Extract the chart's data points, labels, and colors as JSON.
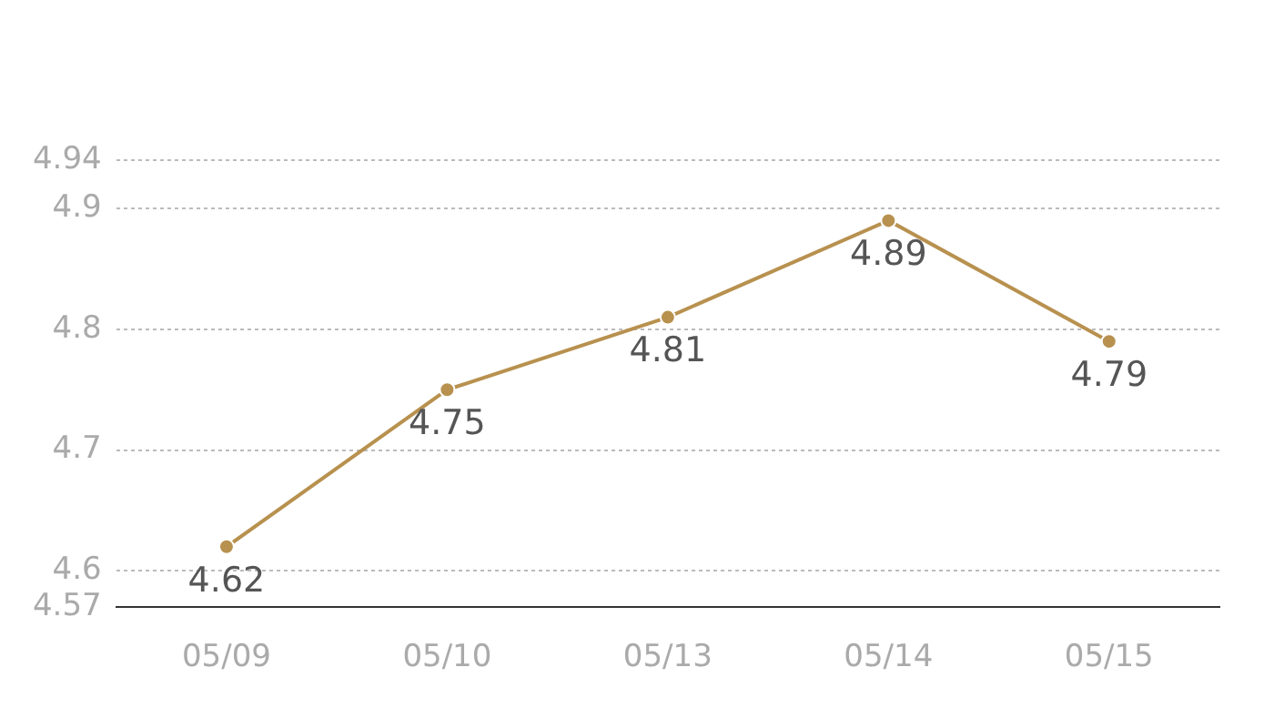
{
  "chart_data": {
    "type": "line",
    "categories": [
      "05/09",
      "05/10",
      "05/13",
      "05/14",
      "05/15"
    ],
    "series": [
      {
        "color": "#b8914f",
        "values": [
          4.62,
          4.75,
          4.81,
          4.89,
          4.79
        ]
      }
    ],
    "ylim": [
      4.57,
      4.94
    ],
    "yticks": [
      4.57,
      4.6,
      4.7,
      4.8,
      4.9,
      4.94
    ],
    "grid": "y",
    "marker": "circle",
    "line_style": "solid",
    "data_labels": true
  }
}
